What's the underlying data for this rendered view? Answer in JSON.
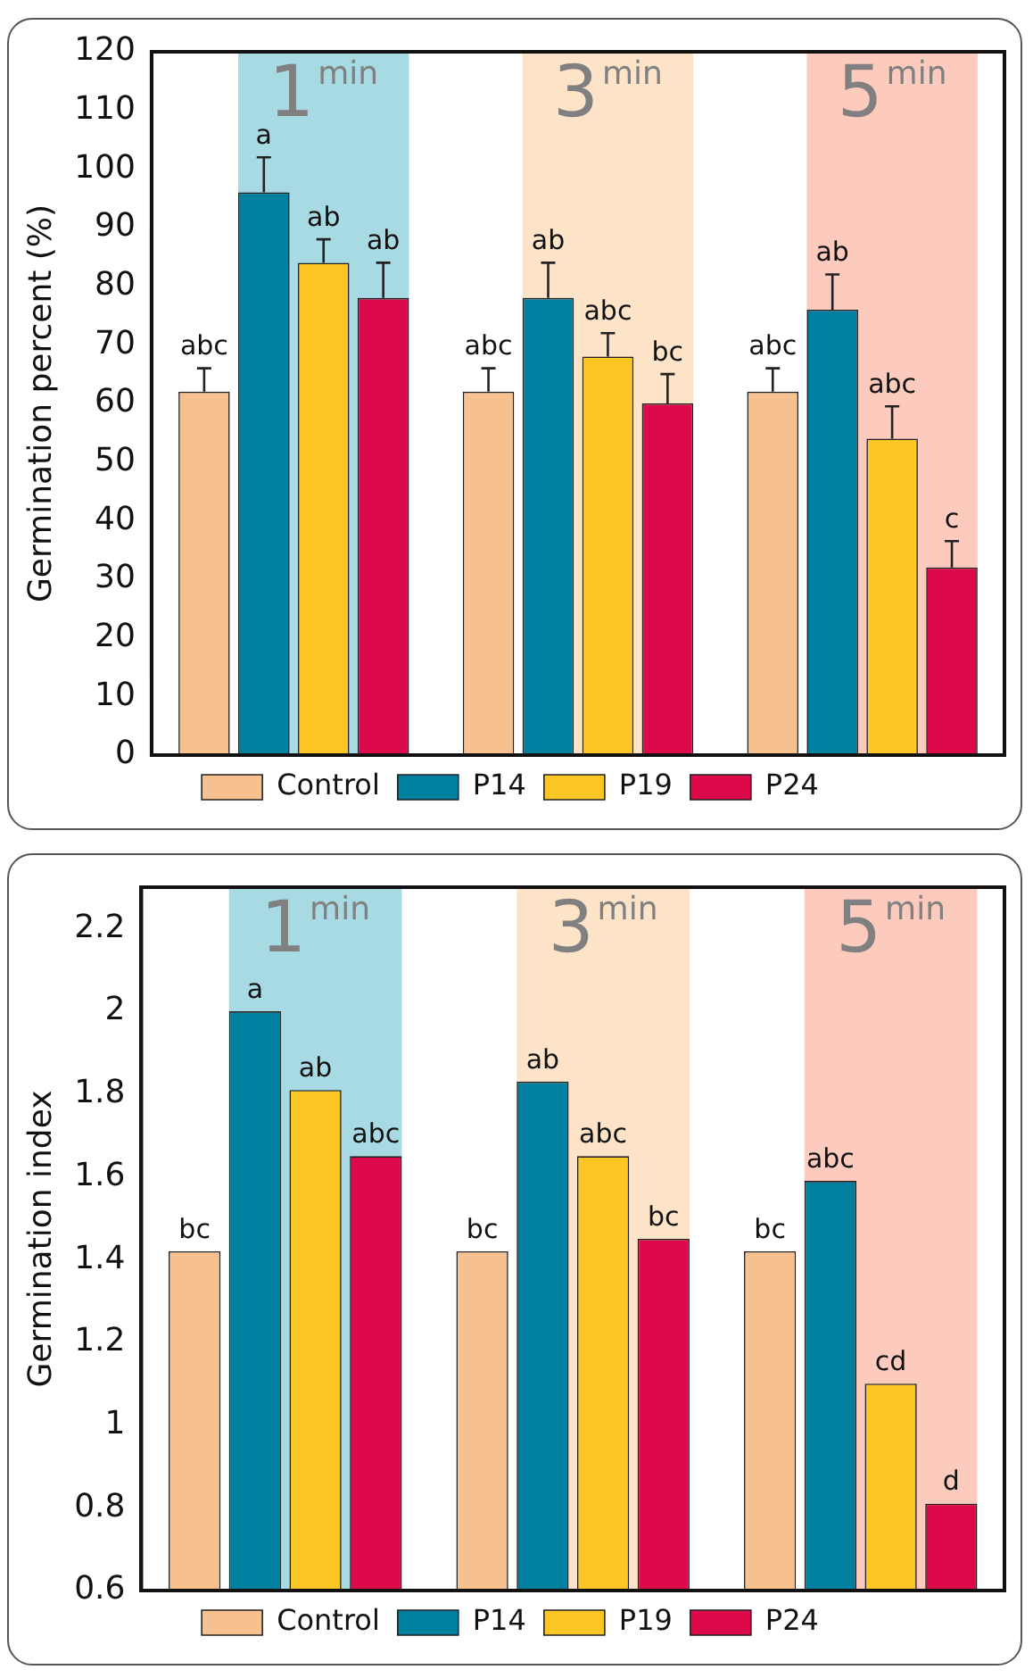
{
  "chart_data": [
    {
      "type": "bar",
      "ylabel": "Germination percent (%)",
      "categories": [
        "1$^{min}$",
        "3$^{min}$",
        "5$^{min}$"
      ],
      "ylim": [
        0,
        120
      ],
      "yticks": [
        0,
        10,
        20,
        30,
        40,
        50,
        60,
        70,
        80,
        90,
        100,
        110,
        120
      ],
      "grid": false,
      "legend": "bottom",
      "bands": [
        {
          "axis": "x",
          "from": "1$^{min}$",
          "to": "1$^{min}$",
          "color": "#a8dae3"
        },
        {
          "axis": "x",
          "from": "3$^{min}$",
          "to": "3$^{min}$",
          "color": "#fde3c8"
        },
        {
          "axis": "x",
          "from": "5$^{min}$",
          "to": "5$^{min}$",
          "color": "#fdcbbe"
        }
      ],
      "series": [
        {
          "name": "Control",
          "color": "#f7c08f",
          "values": [
            62,
            62,
            62
          ],
          "errors": [
            4,
            4,
            4
          ],
          "value_labels": [
            "abc",
            "abc",
            "abc"
          ]
        },
        {
          "name": "P14",
          "color": "#0080a0",
          "values": [
            96,
            78,
            76
          ],
          "errors": [
            6,
            6,
            6
          ],
          "value_labels": [
            "a",
            "ab",
            "ab"
          ]
        },
        {
          "name": "P19",
          "color": "#fcc624",
          "values": [
            84,
            68,
            54
          ],
          "errors": [
            4,
            4,
            5.5
          ],
          "value_labels": [
            "ab",
            "abc",
            "abc"
          ]
        },
        {
          "name": "P24",
          "color": "#dc0a4a",
          "values": [
            78,
            60,
            32
          ],
          "errors": [
            6,
            5,
            4.5
          ],
          "value_labels": [
            "ab",
            "bc",
            "c"
          ]
        }
      ]
    },
    {
      "type": "bar",
      "ylabel": "Germination index",
      "categories": [
        "1$^{min}$",
        "3$^{min}$",
        "5$^{min}$"
      ],
      "ylim": [
        0.6,
        2.3
      ],
      "yticks": [
        0.6,
        0.8,
        1.0,
        1.2,
        1.4,
        1.6,
        1.8,
        2.0,
        2.2
      ],
      "grid": false,
      "legend": "bottom",
      "bands": [
        {
          "axis": "x",
          "from": "1$^{min}$",
          "to": "1$^{min}$",
          "color": "#a8dae3"
        },
        {
          "axis": "x",
          "from": "3$^{min}$",
          "to": "3$^{min}$",
          "color": "#fde3c8"
        },
        {
          "axis": "x",
          "from": "5$^{min}$",
          "to": "5$^{min}$",
          "color": "#fdcbbe"
        }
      ],
      "series": [
        {
          "name": "Control",
          "color": "#f7c08f",
          "values": [
            1.42,
            1.42,
            1.42
          ],
          "value_labels": [
            "bc",
            "bc",
            "bc"
          ]
        },
        {
          "name": "P14",
          "color": "#0080a0",
          "values": [
            2.0,
            1.83,
            1.59
          ],
          "value_labels": [
            "a",
            "ab",
            "abc"
          ]
        },
        {
          "name": "P19",
          "color": "#fcc624",
          "values": [
            1.81,
            1.65,
            1.1
          ],
          "value_labels": [
            "ab",
            "abc",
            "cd"
          ]
        },
        {
          "name": "P24",
          "color": "#dc0a4a",
          "values": [
            1.65,
            1.45,
            0.81
          ],
          "value_labels": [
            "abc",
            "bc",
            "d"
          ]
        }
      ]
    }
  ]
}
